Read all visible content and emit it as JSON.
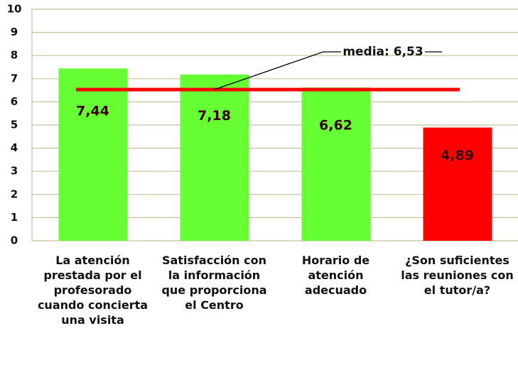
{
  "chart_data": {
    "type": "bar",
    "categories": [
      "La atención prestada por el profesorado cuando concierta una visita",
      "Satisfacción con la información que proporciona el Centro",
      "Horario de atención adecuado",
      "¿Son suficientes las reuniones con el tutor/a?"
    ],
    "values": [
      7.44,
      7.18,
      6.62,
      4.89
    ],
    "value_labels": [
      "7,44",
      "7,18",
      "6,62",
      "4,89"
    ],
    "colors": [
      "#66ff33",
      "#66ff33",
      "#66ff33",
      "#ff0000"
    ],
    "mean": 6.53,
    "mean_label": "media: 6,53",
    "mean_color": "#ff0000",
    "ylim": [
      0,
      10
    ],
    "yticks": [
      0,
      1,
      2,
      3,
      4,
      5,
      6,
      7,
      8,
      9,
      10
    ],
    "grid": true
  }
}
